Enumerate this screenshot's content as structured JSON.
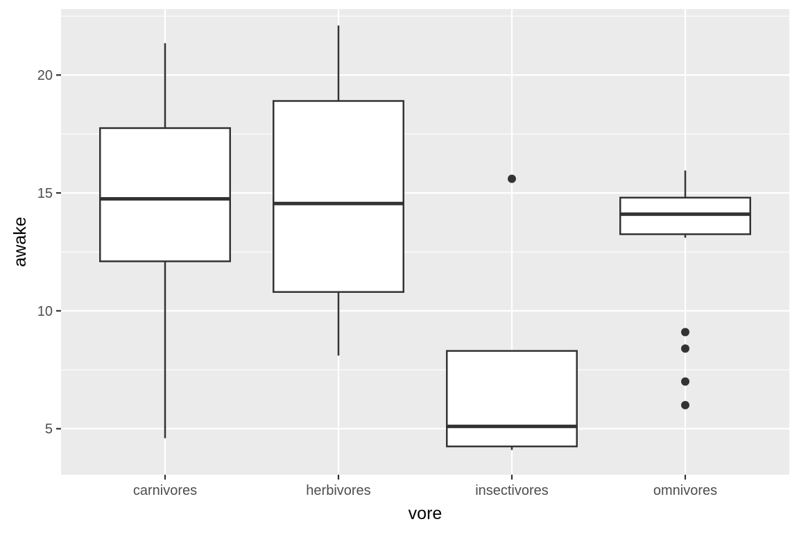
{
  "chart_data": {
    "type": "box",
    "xlabel": "vore",
    "ylabel": "awake",
    "categories": [
      "carnivores",
      "herbivores",
      "insectivores",
      "omnivores"
    ],
    "ylim": [
      3.05,
      22.8
    ],
    "yticks": [
      5,
      10,
      15,
      20
    ],
    "grid": true,
    "legend": "none",
    "colors": {
      "panel": "#EBEBEB",
      "grid": "#FFFFFF",
      "box_fill": "#FFFFFF",
      "box_line": "#333333"
    },
    "boxes": [
      {
        "category": "carnivores",
        "min": 4.6,
        "q1": 12.1,
        "median": 14.75,
        "q3": 17.75,
        "max": 21.35,
        "outliers": []
      },
      {
        "category": "herbivores",
        "min": 8.1,
        "q1": 10.8,
        "median": 14.55,
        "q3": 18.9,
        "max": 22.1,
        "outliers": []
      },
      {
        "category": "insectivores",
        "min": 4.1,
        "q1": 4.25,
        "median": 5.1,
        "q3": 8.3,
        "max": 8.3,
        "outliers": [
          15.6
        ]
      },
      {
        "category": "omnivores",
        "min": 13.1,
        "q1": 13.25,
        "median": 14.1,
        "q3": 14.8,
        "max": 15.95,
        "outliers": [
          9.1,
          8.4,
          7.0,
          6.0
        ]
      }
    ]
  }
}
